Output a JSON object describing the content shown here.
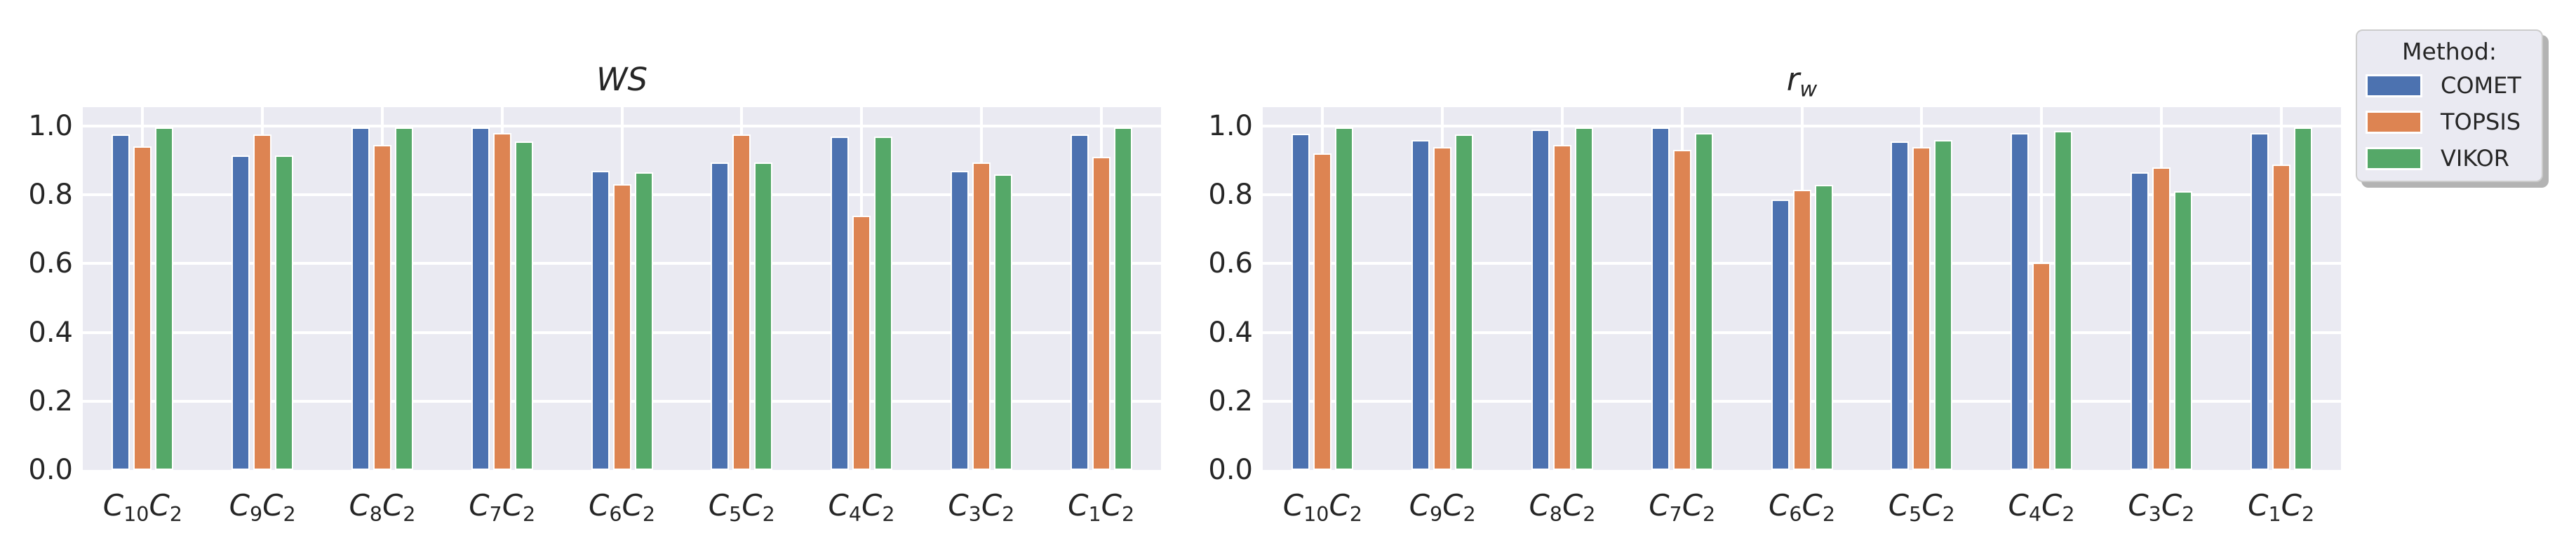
{
  "colors": {
    "figure_background": "#ffffff",
    "axes_background": "#eaeaf2",
    "gridline": "#ffffff",
    "text": "#262626",
    "bar_edge": "#ffffff",
    "legend_background": "#eaeaf2",
    "legend_border": "#cccccc",
    "legend_shadow": "#b3b3b3",
    "comet_blue": "#4c72b0",
    "topsis_orange": "#dd8452",
    "vikor_green": "#55a868"
  },
  "legend": {
    "title": "Method:",
    "entries": [
      {
        "label": "COMET",
        "color": "#4c72b0"
      },
      {
        "label": "TOPSIS",
        "color": "#dd8452"
      },
      {
        "label": "VIKOR",
        "color": "#55a868"
      }
    ]
  },
  "chart_data": [
    {
      "type": "bar",
      "title": "WS",
      "title_parts": [
        {
          "text": "WS",
          "sub": ""
        }
      ],
      "categories": [
        "C10C2",
        "C9C2",
        "C8C2",
        "C7C2",
        "C6C2",
        "C5C2",
        "C4C2",
        "C3C2",
        "C1C2"
      ],
      "categories_parts": [
        [
          {
            "text": "C",
            "sub": "10"
          },
          {
            "text": "C",
            "sub": "2"
          }
        ],
        [
          {
            "text": "C",
            "sub": "9"
          },
          {
            "text": "C",
            "sub": "2"
          }
        ],
        [
          {
            "text": "C",
            "sub": "8"
          },
          {
            "text": "C",
            "sub": "2"
          }
        ],
        [
          {
            "text": "C",
            "sub": "7"
          },
          {
            "text": "C",
            "sub": "2"
          }
        ],
        [
          {
            "text": "C",
            "sub": "6"
          },
          {
            "text": "C",
            "sub": "2"
          }
        ],
        [
          {
            "text": "C",
            "sub": "5"
          },
          {
            "text": "C",
            "sub": "2"
          }
        ],
        [
          {
            "text": "C",
            "sub": "4"
          },
          {
            "text": "C",
            "sub": "2"
          }
        ],
        [
          {
            "text": "C",
            "sub": "3"
          },
          {
            "text": "C",
            "sub": "2"
          }
        ],
        [
          {
            "text": "C",
            "sub": "1"
          },
          {
            "text": "C",
            "sub": "2"
          }
        ]
      ],
      "xlabel": "",
      "ylabel": "",
      "ylim": [
        0,
        1.055
      ],
      "yticks": [
        "0.0",
        "0.2",
        "0.4",
        "0.6",
        "0.8",
        "1.0"
      ],
      "grid": true,
      "legend_position": "figure upper right",
      "series": [
        {
          "name": "COMET",
          "color": "#4c72b0",
          "values": [
            0.975,
            0.915,
            0.995,
            0.995,
            0.87,
            0.895,
            0.97,
            0.87,
            0.975
          ]
        },
        {
          "name": "TOPSIS",
          "color": "#dd8452",
          "values": [
            0.94,
            0.975,
            0.945,
            0.98,
            0.83,
            0.975,
            0.74,
            0.895,
            0.91
          ]
        },
        {
          "name": "VIKOR",
          "color": "#55a868",
          "values": [
            0.995,
            0.915,
            0.995,
            0.955,
            0.865,
            0.895,
            0.97,
            0.86,
            0.995
          ]
        }
      ]
    },
    {
      "type": "bar",
      "title": "r_w",
      "title_parts": [
        {
          "text": "r",
          "sub": "w"
        }
      ],
      "categories": [
        "C10C2",
        "C9C2",
        "C8C2",
        "C7C2",
        "C6C2",
        "C5C2",
        "C4C2",
        "C3C2",
        "C1C2"
      ],
      "categories_parts": [
        [
          {
            "text": "C",
            "sub": "10"
          },
          {
            "text": "C",
            "sub": "2"
          }
        ],
        [
          {
            "text": "C",
            "sub": "9"
          },
          {
            "text": "C",
            "sub": "2"
          }
        ],
        [
          {
            "text": "C",
            "sub": "8"
          },
          {
            "text": "C",
            "sub": "2"
          }
        ],
        [
          {
            "text": "C",
            "sub": "7"
          },
          {
            "text": "C",
            "sub": "2"
          }
        ],
        [
          {
            "text": "C",
            "sub": "6"
          },
          {
            "text": "C",
            "sub": "2"
          }
        ],
        [
          {
            "text": "C",
            "sub": "5"
          },
          {
            "text": "C",
            "sub": "2"
          }
        ],
        [
          {
            "text": "C",
            "sub": "4"
          },
          {
            "text": "C",
            "sub": "2"
          }
        ],
        [
          {
            "text": "C",
            "sub": "3"
          },
          {
            "text": "C",
            "sub": "2"
          }
        ],
        [
          {
            "text": "C",
            "sub": "1"
          },
          {
            "text": "C",
            "sub": "2"
          }
        ]
      ],
      "xlabel": "",
      "ylabel": "",
      "ylim": [
        0,
        1.055
      ],
      "yticks": [
        "0.0",
        "0.2",
        "0.4",
        "0.6",
        "0.8",
        "1.0"
      ],
      "grid": true,
      "legend_position": "figure upper right",
      "series": [
        {
          "name": "COMET",
          "color": "#4c72b0",
          "values": [
            0.978,
            0.96,
            0.99,
            0.995,
            0.787,
            0.955,
            0.98,
            0.865,
            0.98
          ]
        },
        {
          "name": "TOPSIS",
          "color": "#dd8452",
          "values": [
            0.92,
            0.938,
            0.945,
            0.93,
            0.815,
            0.938,
            0.603,
            0.88,
            0.888
          ]
        },
        {
          "name": "VIKOR",
          "color": "#55a868",
          "values": [
            0.995,
            0.975,
            0.995,
            0.98,
            0.828,
            0.96,
            0.985,
            0.81,
            0.995
          ]
        }
      ]
    }
  ]
}
